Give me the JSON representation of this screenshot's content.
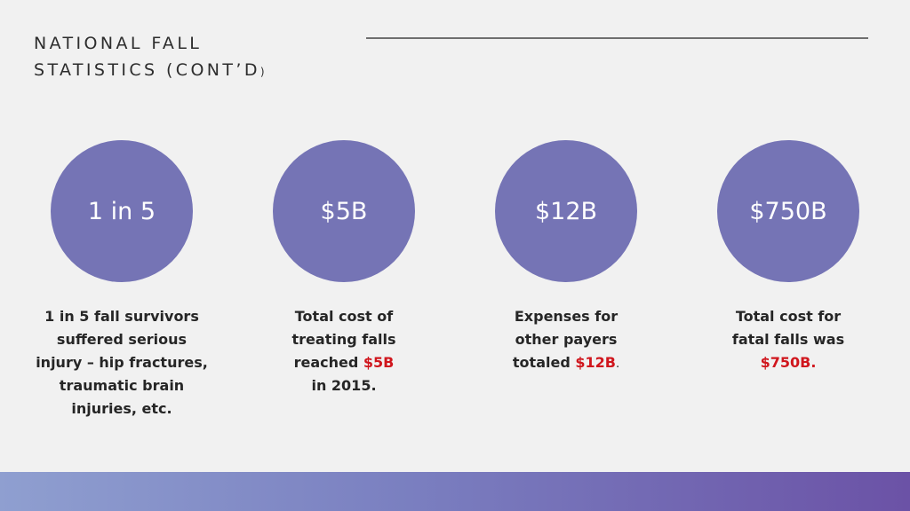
{
  "slide": {
    "title_line1": "NATIONAL FALL",
    "title_line2": "STATISTICS (CONT’D",
    "title_close": ")"
  },
  "stats": [
    {
      "value": "1 in 5",
      "caption": "1 in 5 fall survivors suffered serious injury – hip fractures, traumatic brain injuries, etc."
    },
    {
      "value": "$5B",
      "caption_before": "Total cost of treating falls reached ",
      "caption_highlight": "$5B",
      "caption_after": " in 2015."
    },
    {
      "value": "$12B",
      "caption_before": "Expenses for other payers totaled ",
      "caption_highlight": "$12B",
      "caption_after": "."
    },
    {
      "value": "$750B",
      "caption_before": "Total cost for fatal falls was ",
      "caption_highlight": "$750B."
    }
  ],
  "colors": {
    "circle": "#7574b5",
    "highlight": "#d0161d",
    "background": "#f1f1f1",
    "bar_start": "#8f9fd0",
    "bar_end": "#6b52a6"
  }
}
